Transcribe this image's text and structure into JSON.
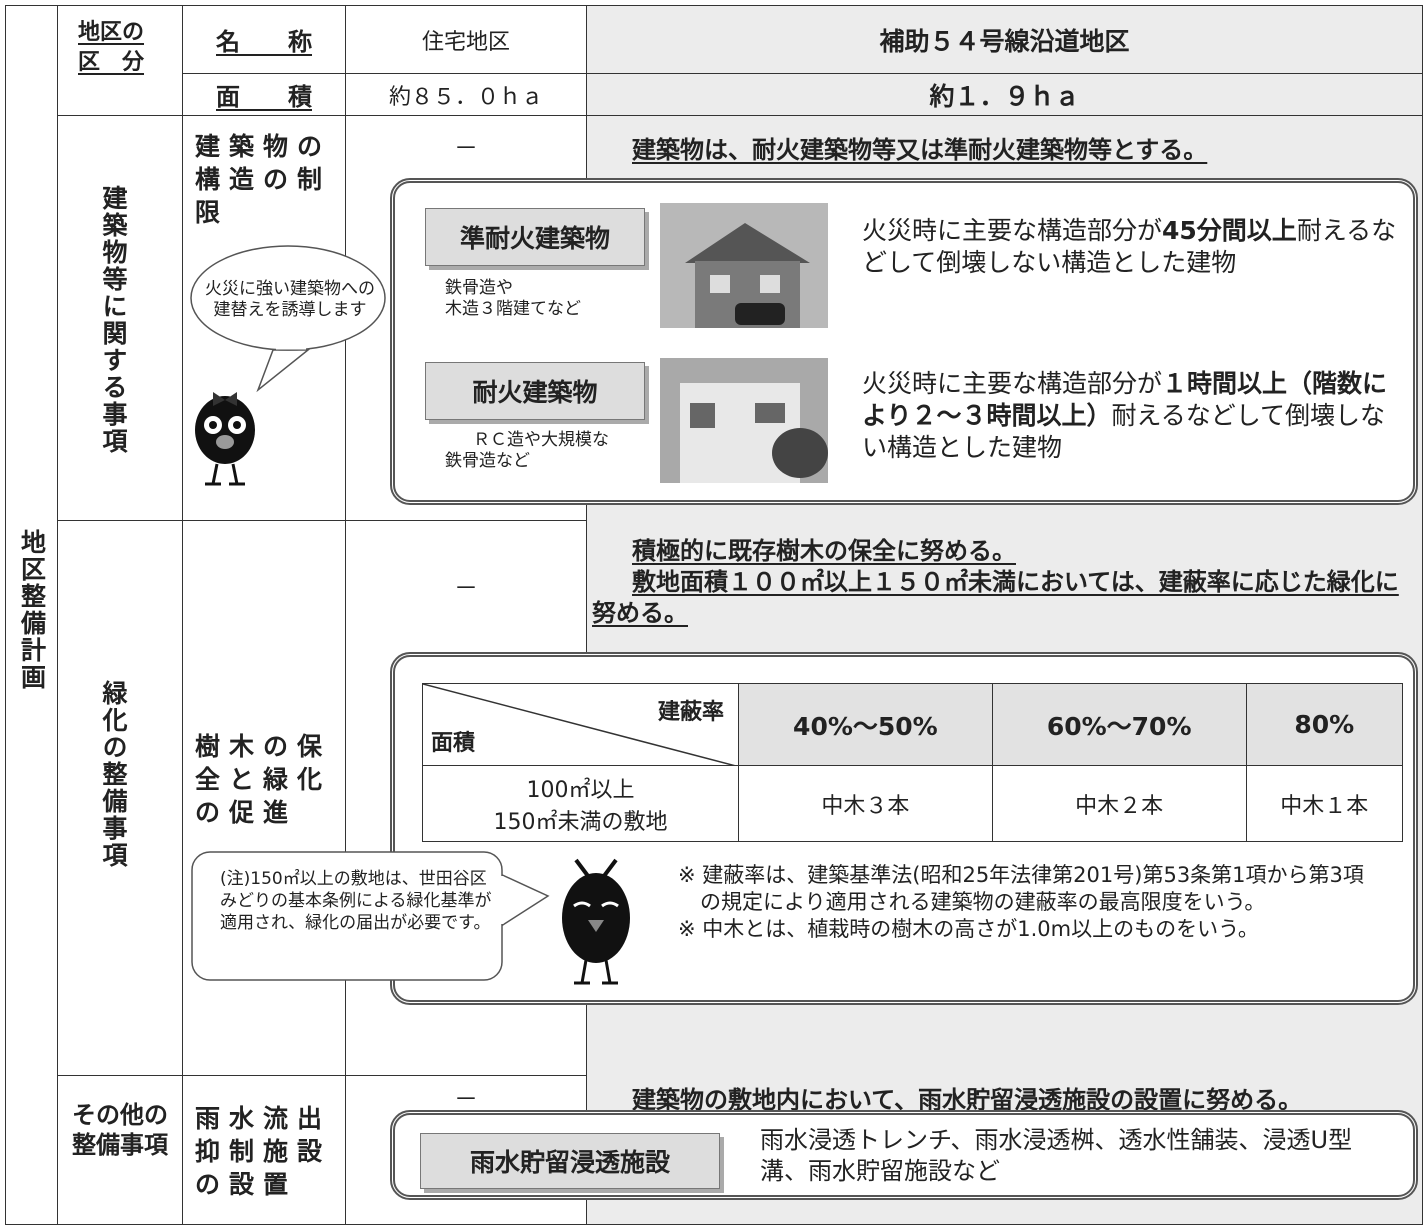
{
  "header": {
    "district_label": [
      "地区の",
      "区　分"
    ],
    "name_label": "名　　称",
    "area_label": "面　　積",
    "residential_name": "住宅地区",
    "residential_area": "約８５．０ｈａ",
    "roadside_name": "補助５４号線沿道地区",
    "roadside_area": "約１．９ｈａ"
  },
  "plan_label": "地区整備計画",
  "structure": {
    "category": "建築物等に関する事項",
    "item": "建築物の構造の制限",
    "residential": "－",
    "rule": "建築物は、耐火建築物等又は準耐火建築物等とする。",
    "bubble": "火災に強い建築物への建替えを誘導します",
    "types": [
      {
        "name": "準耐火建築物",
        "examples": [
          "鉄骨造や",
          "木造３階建てなど"
        ],
        "before": "火災時に主要な構造部分が",
        "emphasis": "45分間以上",
        "after": "耐えるなどして倒壊しない構造とした建物"
      },
      {
        "name": "耐火建築物",
        "examples": [
          "ＲＣ造や大規模な",
          "鉄骨造など"
        ],
        "before": "火災時に主要な構造部分が",
        "emphasis": "１時間以上（階数により２～３時間以上）",
        "after": "耐えるなどして倒壊しない構造とした建物"
      }
    ]
  },
  "greening": {
    "category": "緑化の整備事項",
    "item": "樹木の保全と緑化の促進",
    "residential": "－",
    "rules": [
      "積極的に既存樹木の保全に努める。",
      "敷地面積１００㎡以上１５０㎡未満においては、建蔽率に応じた緑化に努める。"
    ],
    "table": {
      "corner_top": "建蔽率",
      "corner_bottom": "面積",
      "columns": [
        "40%～50%",
        "60%～70%",
        "80%"
      ],
      "row_label": [
        "100㎡以上",
        "150㎡未満の敷地"
      ],
      "cells": [
        "中木３本",
        "中木２本",
        "中木１本"
      ]
    },
    "note_bubble": "(注)150㎡以上の敷地は、世田谷区みどりの基本条例による緑化基準が適用され、緑化の届出が必要です。",
    "notes": [
      "※ 建蔽率は、建築基準法(昭和25年法律第201号)第53条第1項から第3項の規定により適用される建築物の建蔽率の最高限度をいう。",
      "※ 中木とは、植栽時の樹木の高さが1.0m以上のものをいう。"
    ]
  },
  "rainwater": {
    "category": "その他の整備事項",
    "item": "雨水流出抑制施設の設置",
    "residential": "－",
    "rule": "建築物の敷地内において、雨水貯留浸透施設の設置に努める。",
    "facility": "雨水貯留浸透施設",
    "facility_description": "雨水浸透トレンチ、雨水浸透桝、透水性舗装、浸透U型溝、雨水貯留施設など"
  }
}
